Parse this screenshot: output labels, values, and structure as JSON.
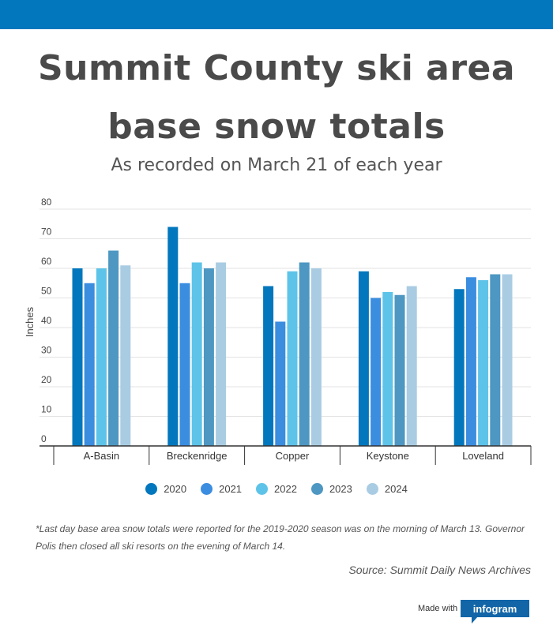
{
  "header": {
    "title_line1": "Summit County ski area",
    "title_line2": "base snow totals",
    "subtitle": "As recorded on March 21 of each year"
  },
  "chart_data": {
    "type": "bar",
    "categories": [
      "A-Basin",
      "Breckenridge",
      "Copper",
      "Keystone",
      "Loveland"
    ],
    "series": [
      {
        "name": "2020",
        "color": "#0277bd",
        "values": [
          60,
          74,
          54,
          59,
          53
        ]
      },
      {
        "name": "2021",
        "color": "#3b8de0",
        "values": [
          55,
          55,
          42,
          50,
          57
        ]
      },
      {
        "name": "2022",
        "color": "#5ec3e8",
        "values": [
          60,
          62,
          59,
          52,
          56
        ]
      },
      {
        "name": "2023",
        "color": "#4d97c2",
        "values": [
          66,
          60,
          62,
          51,
          58
        ]
      },
      {
        "name": "2024",
        "color": "#a9cce3",
        "values": [
          61,
          62,
          60,
          54,
          58
        ]
      }
    ],
    "ylabel": "Inches",
    "ylim": [
      0,
      80
    ],
    "yticks": [
      0,
      10,
      20,
      30,
      40,
      50,
      60,
      70,
      80
    ],
    "grid": true,
    "legend": "bottom"
  },
  "footnote": "*Last day base area snow totals were reported for the 2019-2020 season was on the morning of March 13. Governor Polis then closed all ski resorts on the evening of March 14.",
  "source": "Source: Summit Daily News Archives",
  "branding": {
    "made_with": "Made with",
    "logo": "infogram"
  }
}
